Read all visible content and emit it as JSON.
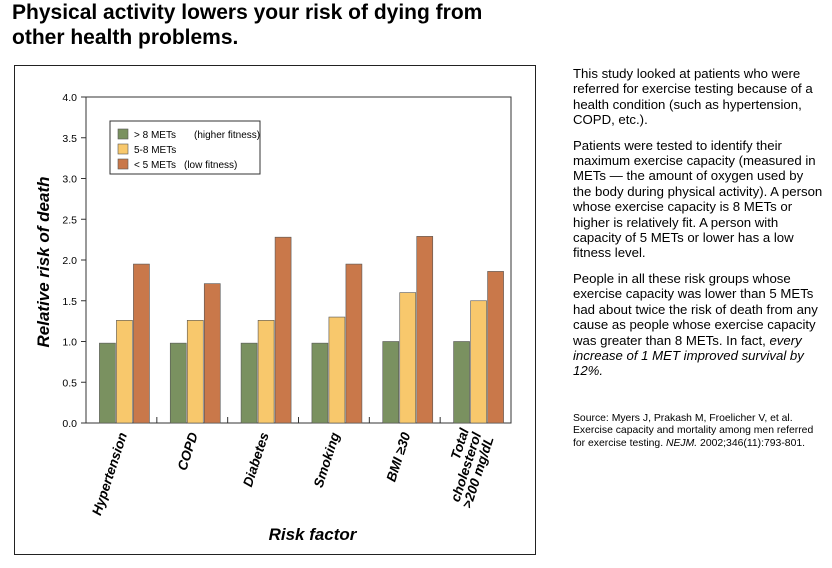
{
  "heading": "Physical activity lowers your risk of dying from other health problems.",
  "chart_data": {
    "type": "bar",
    "ylabel": "Relative risk of death",
    "xlabel": "Risk factor",
    "ylim": [
      0,
      4.0
    ],
    "yticks": [
      "0.0",
      "0.5",
      "1.0",
      "1.5",
      "2.0",
      "2.5",
      "3.0",
      "3.5",
      "4.0"
    ],
    "categories": [
      "Hypertension",
      "COPD",
      "Diabetes",
      "Smoking",
      "BMI ≥30",
      "Total cholesterol >200 mg/dL"
    ],
    "category_lines": [
      [
        "Hypertension"
      ],
      [
        "COPD"
      ],
      [
        "Diabetes"
      ],
      [
        "Smoking"
      ],
      [
        "BMI ≥30"
      ],
      [
        "Total",
        "cholesterol",
        ">200 mg/dL"
      ]
    ],
    "series": [
      {
        "name": "> 8 METs",
        "note": "(higher fitness)",
        "color": "#7a9160",
        "values": [
          0.98,
          0.98,
          0.98,
          0.98,
          1.0,
          1.0
        ]
      },
      {
        "name": "5-8 METs",
        "note": "",
        "color": "#f8c86c",
        "values": [
          1.26,
          1.26,
          1.26,
          1.3,
          1.6,
          1.5
        ]
      },
      {
        "name": "< 5 METs",
        "note": "(low fitness)",
        "color": "#c9784a",
        "values": [
          1.95,
          1.71,
          2.28,
          1.95,
          2.29,
          1.86
        ]
      }
    ],
    "legend_position": "top-left"
  },
  "side": {
    "p1": "This study looked at patients who were referred for exercise testing because of a health condition (such as hypertension, COPD, etc.).",
    "p2": "Patients were tested to identify their maximum exercise capacity (measured in METs — the amount of oxygen used by the body during physical activity). A person whose exercise capacity is 8 METs or higher is relatively fit. A person with capacity of 5 METs or lower has a low fitness level.",
    "p3_plain": "People in all these risk groups whose exercise capacity was lower than 5 METs had about twice the risk of death from any cause as people whose exercise capacity was greater than 8 METs. In fact, ",
    "p3_italic": "every increase of 1 MET improved survival by 12%.",
    "source_plain": "Source:  Myers J, Prakash M, Froelicher V, et al. Exercise capacity and mortality among men referred for exercise testing. ",
    "source_journal": "NEJM.",
    "source_rest": " 2002;346(11):793-801."
  }
}
